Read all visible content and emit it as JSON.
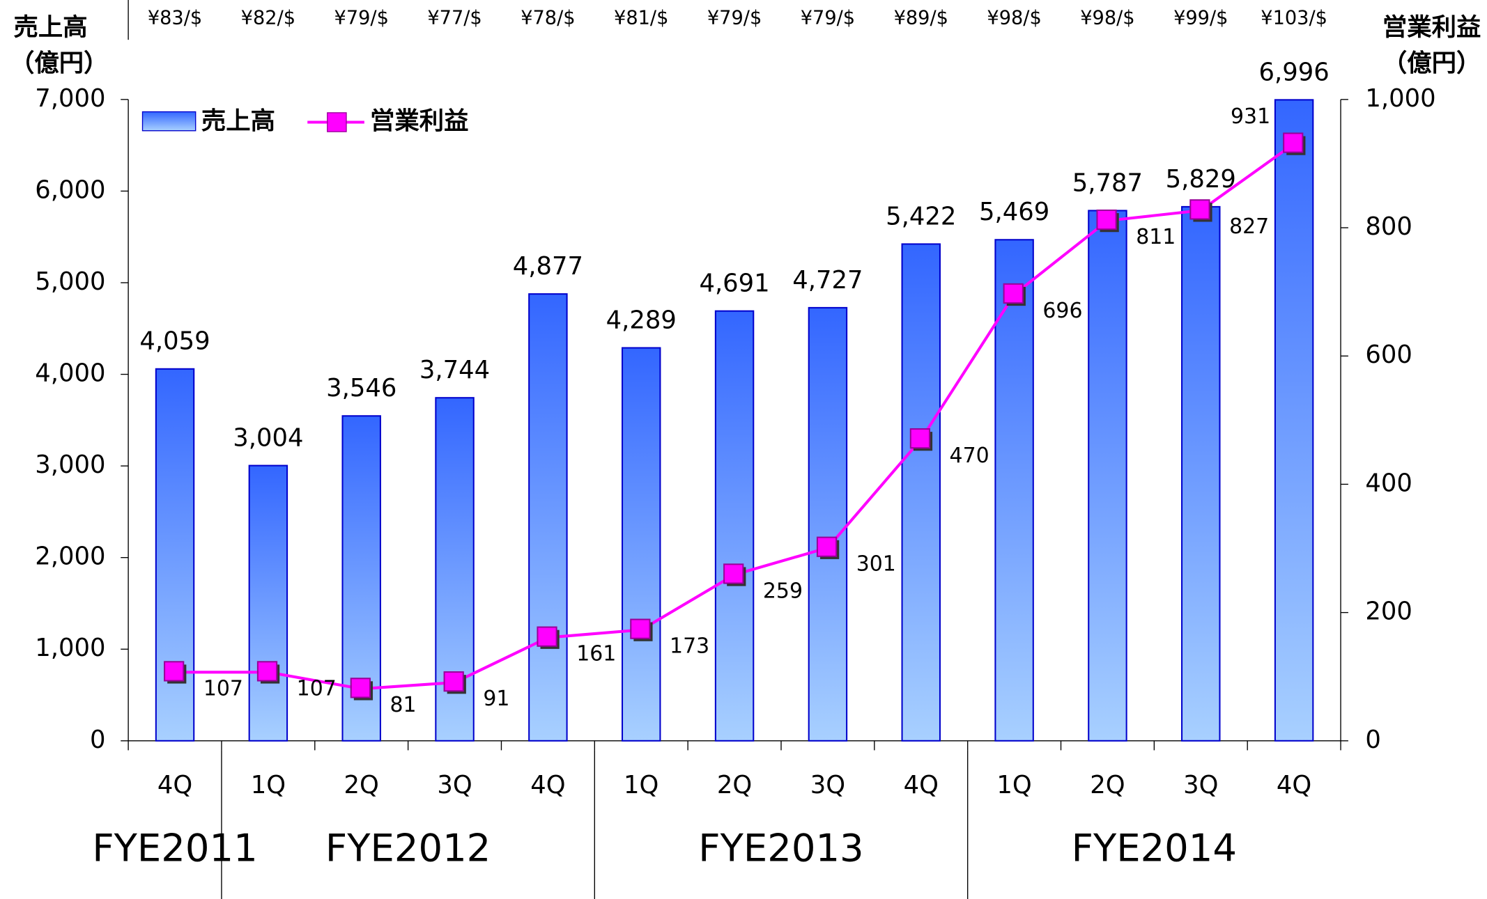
{
  "chart_data": {
    "type": "bar_line",
    "y_label": [
      "売上高",
      "（億円）"
    ],
    "y2_label": [
      "営業利益",
      "（億円）"
    ],
    "exchange_rates": [
      "¥83/$",
      "¥82/$",
      "¥79/$",
      "¥77/$",
      "¥78/$",
      "¥81/$",
      "¥79/$",
      "¥79/$",
      "¥89/$",
      "¥98/$",
      "¥98/$",
      "¥99/$",
      "¥103/$"
    ],
    "groups": [
      {
        "label": "FYE2011",
        "categories": [
          "4Q"
        ]
      },
      {
        "label": "FYE2012",
        "categories": [
          "1Q",
          "2Q",
          "3Q",
          "4Q"
        ]
      },
      {
        "label": "FYE2013",
        "categories": [
          "1Q",
          "2Q",
          "3Q",
          "4Q"
        ]
      },
      {
        "label": "FYE2014",
        "categories": [
          "1Q",
          "2Q",
          "3Q",
          "4Q"
        ]
      }
    ],
    "series": [
      {
        "name": "売上高",
        "color": "#3366ff",
        "values": [
          4059,
          3004,
          3546,
          3744,
          4877,
          4289,
          4691,
          4727,
          5422,
          5469,
          5787,
          5829,
          6996
        ],
        "value_labels": [
          "4,059",
          "3,004",
          "3,546",
          "3,744",
          "4,877",
          "4,289",
          "4,691",
          "4,727",
          "5,422",
          "5,469",
          "5,787",
          "5,829",
          "6,996"
        ]
      },
      {
        "name": "営業利益",
        "color": "#ff00ff",
        "axis": "y2",
        "values": [
          107,
          107,
          81,
          91,
          161,
          173,
          259,
          301,
          470,
          696,
          811,
          827,
          931
        ]
      }
    ],
    "ylim": [
      0,
      7000
    ],
    "yticks": [
      0,
      {
        "value": 1000,
        "label": "1,000"
      },
      {
        "value": 2000,
        "label": "2,000"
      },
      {
        "value": 3000,
        "label": "3,000"
      },
      {
        "value": 4000,
        "label": "4,000"
      },
      {
        "value": 5000,
        "label": "5,000"
      },
      {
        "value": 6000,
        "label": "6,000"
      },
      {
        "value": 7000,
        "label": "7,000"
      }
    ],
    "y2lim": [
      0,
      1000
    ],
    "y2ticks": [
      0,
      200,
      400,
      600,
      800,
      {
        "value": 1000,
        "label": "1,000"
      }
    ]
  }
}
